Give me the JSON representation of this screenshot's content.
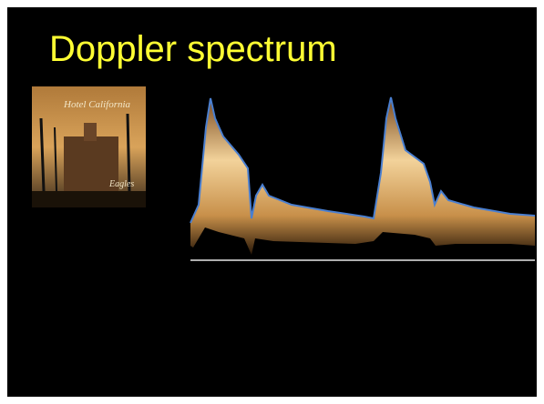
{
  "title": "Doppler spectrum",
  "album": {
    "title": "Hotel California",
    "artist": "Eagles"
  }
}
